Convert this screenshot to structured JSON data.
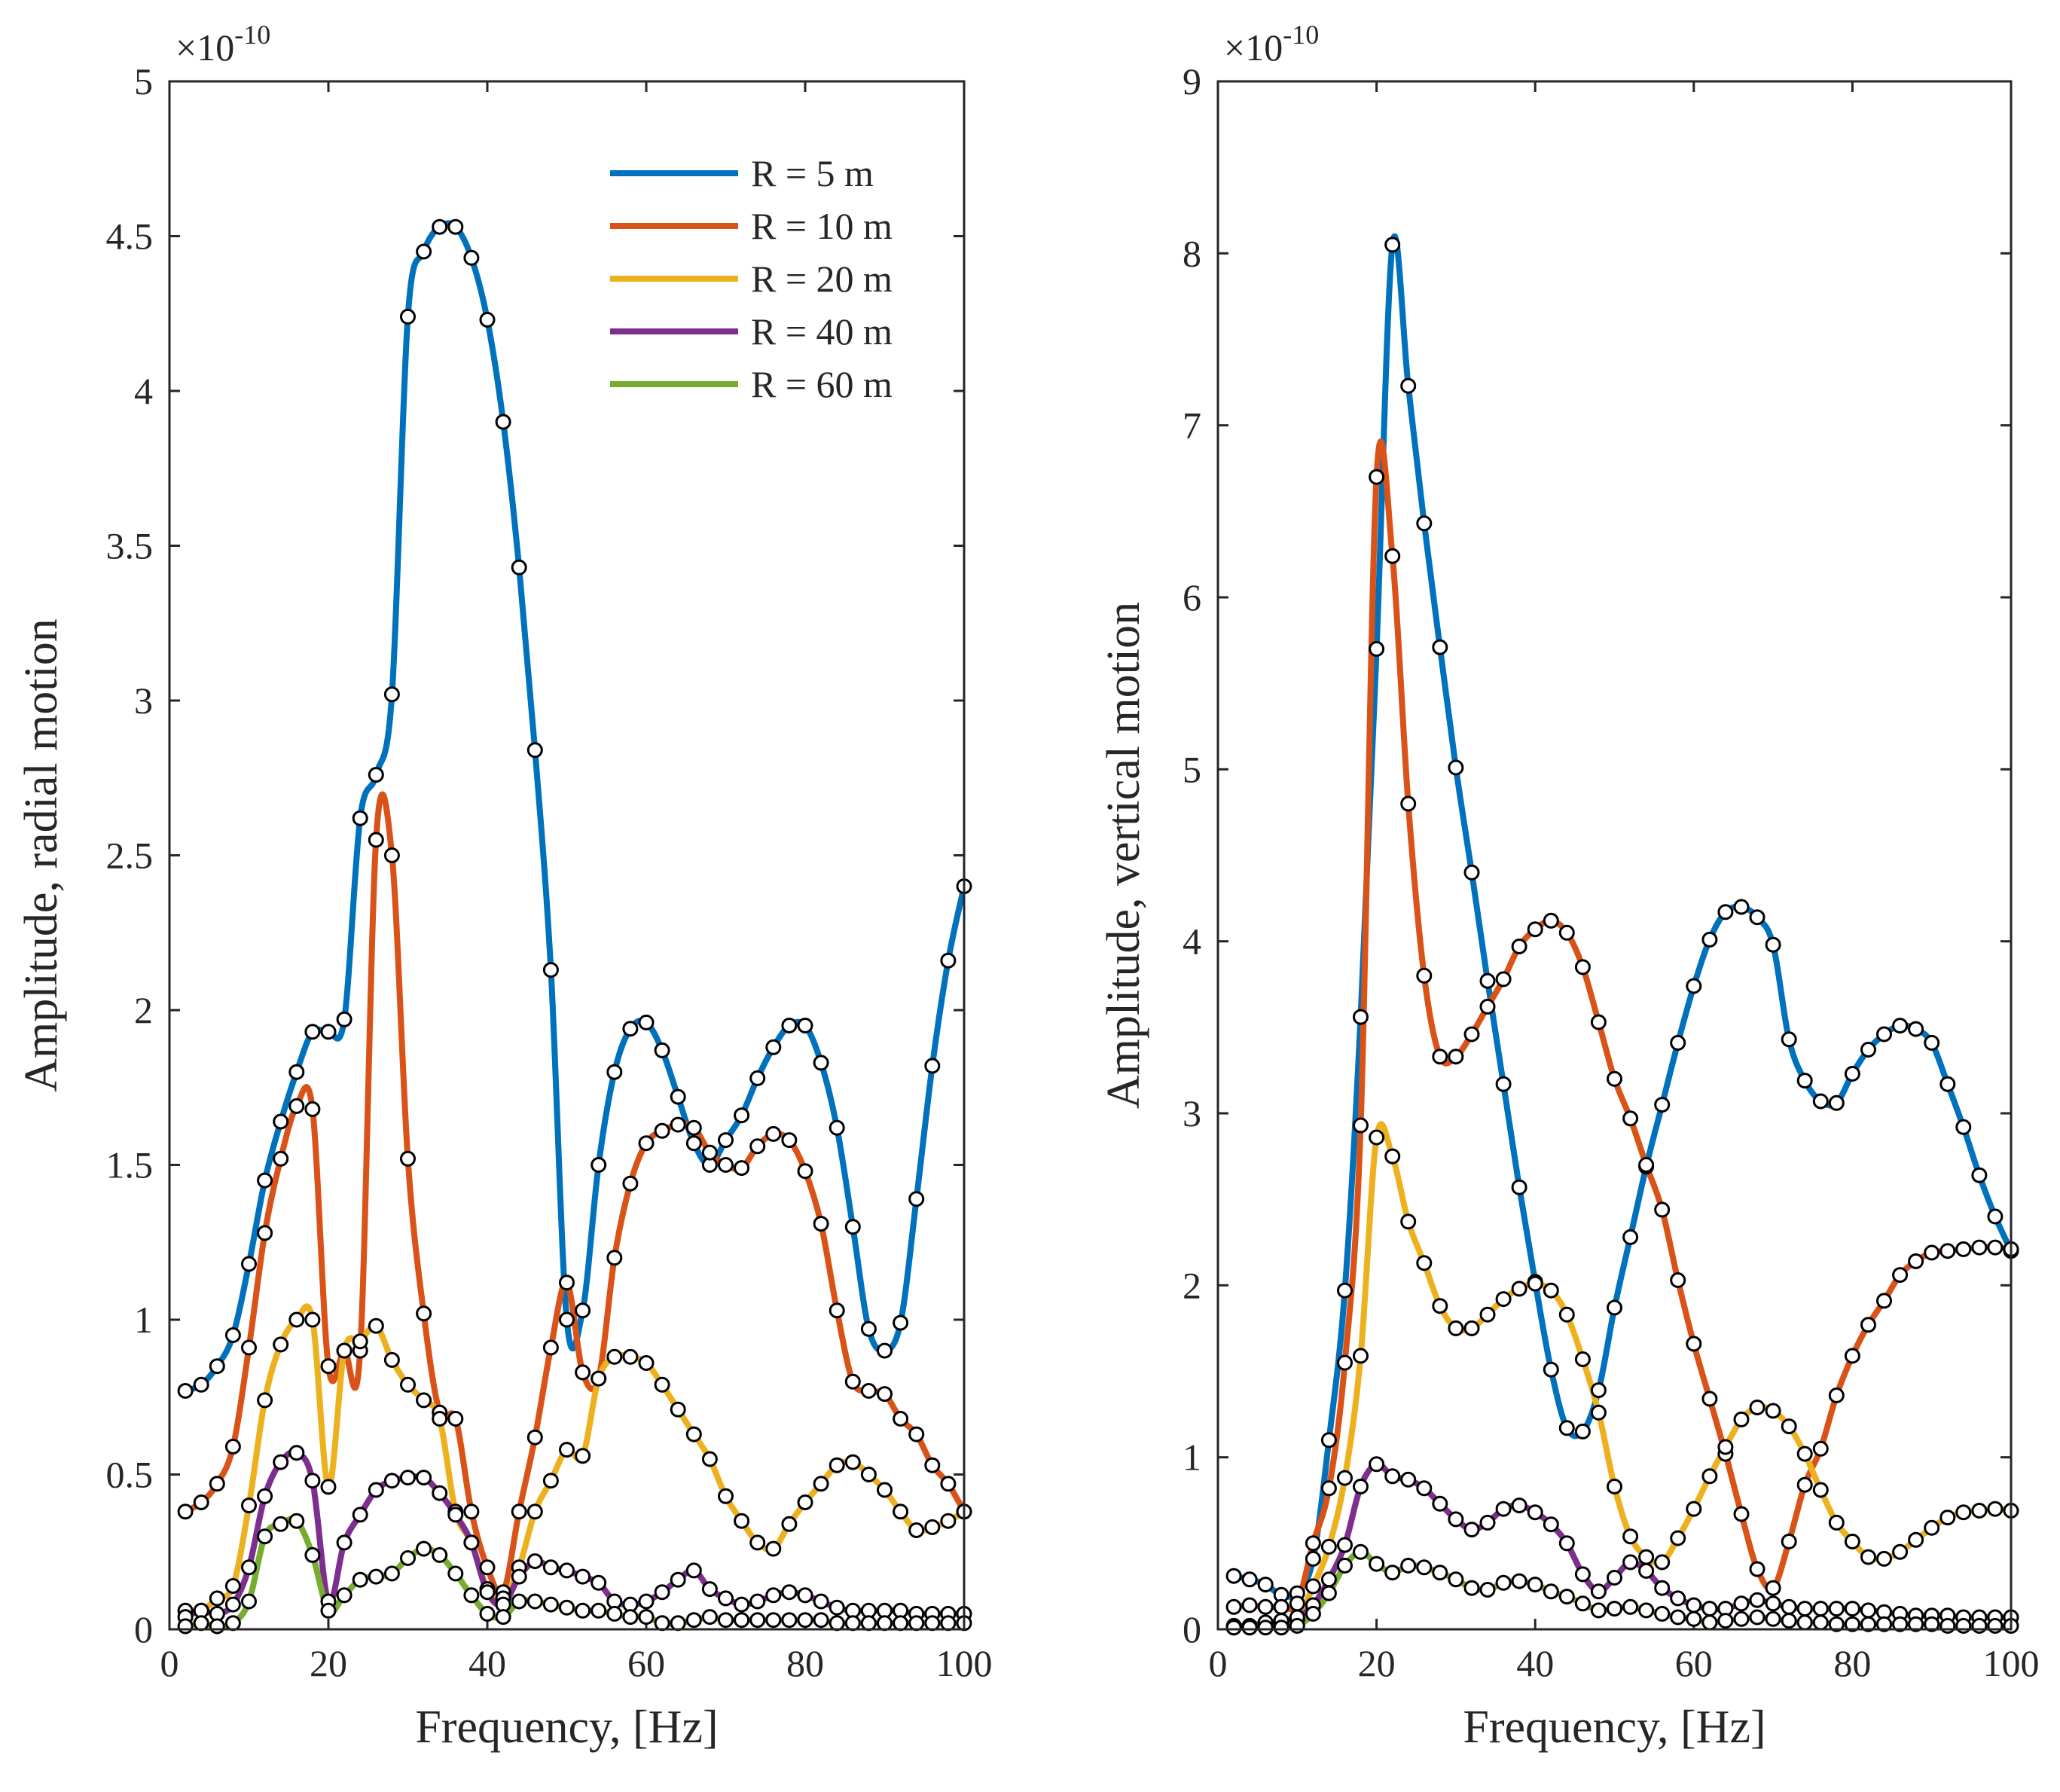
{
  "chart_data": [
    {
      "type": "line",
      "title": "",
      "xlabel": "Frequency, [Hz]",
      "ylabel": "Amplitude, radial motion",
      "exponent_label": "×10",
      "exponent_power": "-10",
      "xlim": [
        0,
        100
      ],
      "ylim": [
        0,
        5
      ],
      "xticks": [
        0,
        20,
        40,
        60,
        80,
        100
      ],
      "xtick_labels": [
        "0",
        "20",
        "40",
        "60",
        "80",
        "100"
      ],
      "yticks": [
        0,
        0.5,
        1,
        1.5,
        2,
        2.5,
        3,
        3.5,
        4,
        4.5,
        5
      ],
      "ytick_labels": [
        "0",
        "0.5",
        "1",
        "1.5",
        "2",
        "2.5",
        "3",
        "3.5",
        "4",
        "4.5",
        "5"
      ],
      "legend": {
        "position": "top-right",
        "entries": [
          "R = 5 m",
          "R = 10 m",
          "R = 20 m",
          "R = 40 m",
          "R = 60 m"
        ]
      },
      "x": [
        2,
        4,
        6,
        8,
        10,
        12,
        14,
        16,
        18,
        20,
        22,
        24,
        26,
        28,
        30,
        32,
        34,
        36,
        38,
        40,
        42,
        44,
        46,
        48,
        50,
        52,
        54,
        56,
        58,
        60,
        62,
        64,
        66,
        68,
        70,
        72,
        74,
        76,
        78,
        80,
        82,
        84,
        86,
        88,
        90,
        92,
        94,
        96,
        98,
        100
      ],
      "series": [
        {
          "name": "R = 5 m",
          "color": "#0072BD",
          "values": [
            0.77,
            0.79,
            0.85,
            0.95,
            1.18,
            1.45,
            1.64,
            1.8,
            1.93,
            1.93,
            1.97,
            2.62,
            2.76,
            3.02,
            4.24,
            4.45,
            4.53,
            4.53,
            4.43,
            4.23,
            3.9,
            3.43,
            2.84,
            2.13,
            1.0,
            1.03,
            1.5,
            1.8,
            1.94,
            1.96,
            1.87,
            1.72,
            1.57,
            1.5,
            1.58,
            1.66,
            1.78,
            1.88,
            1.95,
            1.95,
            1.83,
            1.62,
            1.3,
            0.97,
            0.9,
            0.99,
            1.39,
            1.82,
            2.16,
            2.4
          ]
        },
        {
          "name": "R = 10 m",
          "color": "#D95319",
          "values": [
            0.38,
            0.41,
            0.47,
            0.59,
            0.91,
            1.28,
            1.52,
            1.69,
            1.68,
            0.85,
            0.9,
            0.9,
            2.55,
            2.5,
            1.52,
            1.02,
            0.7,
            0.68,
            0.38,
            0.2,
            0.12,
            0.38,
            0.62,
            0.91,
            1.12,
            0.83,
            0.81,
            1.2,
            1.44,
            1.57,
            1.61,
            1.63,
            1.62,
            1.54,
            1.5,
            1.49,
            1.56,
            1.6,
            1.58,
            1.48,
            1.31,
            1.03,
            0.8,
            0.77,
            0.76,
            0.68,
            0.63,
            0.53,
            0.47,
            0.38
          ]
        },
        {
          "name": "R = 20 m",
          "color": "#EDB120",
          "values": [
            0.06,
            0.06,
            0.1,
            0.14,
            0.4,
            0.74,
            0.92,
            1.0,
            1.0,
            0.46,
            0.9,
            0.93,
            0.98,
            0.87,
            0.79,
            0.74,
            0.68,
            0.38,
            0.28,
            0.13,
            0.1,
            0.2,
            0.38,
            0.48,
            0.58,
            0.56,
            0.81,
            0.88,
            0.88,
            0.86,
            0.79,
            0.71,
            0.63,
            0.55,
            0.43,
            0.35,
            0.28,
            0.26,
            0.34,
            0.41,
            0.47,
            0.53,
            0.54,
            0.5,
            0.45,
            0.38,
            0.32,
            0.33,
            0.35,
            0.38
          ]
        },
        {
          "name": "R = 40 m",
          "color": "#7E2F8E",
          "values": [
            0.04,
            0.06,
            0.05,
            0.08,
            0.2,
            0.43,
            0.54,
            0.57,
            0.48,
            0.09,
            0.28,
            0.37,
            0.45,
            0.48,
            0.49,
            0.49,
            0.44,
            0.37,
            0.28,
            0.12,
            0.08,
            0.17,
            0.22,
            0.2,
            0.19,
            0.17,
            0.15,
            0.09,
            0.08,
            0.09,
            0.12,
            0.16,
            0.19,
            0.13,
            0.1,
            0.08,
            0.09,
            0.11,
            0.12,
            0.11,
            0.09,
            0.07,
            0.06,
            0.06,
            0.06,
            0.06,
            0.05,
            0.05,
            0.05,
            0.05
          ]
        },
        {
          "name": "R = 60 m",
          "color": "#77AC30",
          "values": [
            0.01,
            0.02,
            0.01,
            0.02,
            0.09,
            0.3,
            0.34,
            0.35,
            0.24,
            0.06,
            0.11,
            0.16,
            0.17,
            0.18,
            0.23,
            0.26,
            0.24,
            0.18,
            0.11,
            0.05,
            0.04,
            0.09,
            0.09,
            0.08,
            0.07,
            0.06,
            0.06,
            0.05,
            0.04,
            0.04,
            0.02,
            0.02,
            0.03,
            0.04,
            0.03,
            0.03,
            0.03,
            0.03,
            0.03,
            0.03,
            0.03,
            0.02,
            0.02,
            0.02,
            0.02,
            0.02,
            0.02,
            0.02,
            0.02,
            0.02
          ]
        }
      ]
    },
    {
      "type": "line",
      "title": "",
      "xlabel": "Frequency, [Hz]",
      "ylabel": "Amplitude, vertical motion",
      "exponent_label": "×10",
      "exponent_power": "-10",
      "xlim": [
        0,
        100
      ],
      "ylim": [
        0,
        9
      ],
      "xticks": [
        0,
        20,
        40,
        60,
        80,
        100
      ],
      "xtick_labels": [
        "0",
        "20",
        "40",
        "60",
        "80",
        "100"
      ],
      "yticks": [
        0,
        1,
        2,
        3,
        4,
        5,
        6,
        7,
        8,
        9
      ],
      "ytick_labels": [
        "0",
        "1",
        "2",
        "3",
        "4",
        "5",
        "6",
        "7",
        "8",
        "9"
      ],
      "legend": {
        "position": "none",
        "entries": []
      },
      "x": [
        2,
        4,
        6,
        8,
        10,
        12,
        14,
        16,
        18,
        20,
        22,
        24,
        26,
        28,
        30,
        32,
        34,
        36,
        38,
        40,
        42,
        44,
        46,
        48,
        50,
        52,
        54,
        56,
        58,
        60,
        62,
        64,
        66,
        68,
        70,
        72,
        74,
        76,
        78,
        80,
        82,
        84,
        86,
        88,
        90,
        92,
        94,
        96,
        98,
        100
      ],
      "series": [
        {
          "name": "R = 5 m",
          "color": "#0072BD",
          "values": [
            0.31,
            0.29,
            0.26,
            0.2,
            0.21,
            0.41,
            1.1,
            1.97,
            3.56,
            5.7,
            8.05,
            7.23,
            6.43,
            5.71,
            5.01,
            4.4,
            3.77,
            3.17,
            2.57,
            2.02,
            1.51,
            1.17,
            1.15,
            1.39,
            1.87,
            2.28,
            2.69,
            3.05,
            3.41,
            3.74,
            4.01,
            4.17,
            4.2,
            4.14,
            3.98,
            3.43,
            3.19,
            3.07,
            3.06,
            3.23,
            3.37,
            3.46,
            3.51,
            3.49,
            3.41,
            3.17,
            2.92,
            2.64,
            2.4,
            2.2
          ]
        },
        {
          "name": "R = 10 m",
          "color": "#D95319",
          "values": [
            0.13,
            0.14,
            0.13,
            0.13,
            0.15,
            0.5,
            0.82,
            1.55,
            2.93,
            6.7,
            6.24,
            4.8,
            3.8,
            3.33,
            3.33,
            3.46,
            3.62,
            3.78,
            3.97,
            4.07,
            4.12,
            4.05,
            3.85,
            3.53,
            3.2,
            2.97,
            2.7,
            2.44,
            2.03,
            1.66,
            1.34,
            1.02,
            0.67,
            0.35,
            0.24,
            0.51,
            0.84,
            1.05,
            1.36,
            1.59,
            1.77,
            1.91,
            2.06,
            2.14,
            2.19,
            2.2,
            2.21,
            2.22,
            2.22,
            2.21
          ]
        },
        {
          "name": "R = 20 m",
          "color": "#EDB120",
          "values": [
            0.01,
            0.01,
            0.02,
            0.03,
            0.06,
            0.25,
            0.48,
            0.88,
            1.59,
            2.86,
            2.75,
            2.37,
            2.13,
            1.88,
            1.75,
            1.75,
            1.83,
            1.92,
            1.98,
            2.01,
            1.97,
            1.83,
            1.57,
            1.26,
            0.83,
            0.54,
            0.42,
            0.39,
            0.53,
            0.7,
            0.89,
            1.06,
            1.22,
            1.29,
            1.27,
            1.18,
            1.02,
            0.81,
            0.62,
            0.51,
            0.42,
            0.41,
            0.45,
            0.52,
            0.59,
            0.65,
            0.68,
            0.69,
            0.7,
            0.69
          ]
        },
        {
          "name": "R = 40 m",
          "color": "#7E2F8E",
          "values": [
            0.02,
            0.02,
            0.04,
            0.05,
            0.07,
            0.14,
            0.29,
            0.49,
            0.83,
            0.96,
            0.89,
            0.87,
            0.82,
            0.73,
            0.64,
            0.58,
            0.62,
            0.7,
            0.72,
            0.68,
            0.61,
            0.5,
            0.32,
            0.22,
            0.3,
            0.39,
            0.34,
            0.24,
            0.18,
            0.14,
            0.12,
            0.12,
            0.15,
            0.17,
            0.15,
            0.13,
            0.12,
            0.12,
            0.12,
            0.12,
            0.11,
            0.1,
            0.09,
            0.08,
            0.08,
            0.08,
            0.07,
            0.07,
            0.07,
            0.07
          ]
        },
        {
          "name": "R = 60 m",
          "color": "#77AC30",
          "values": [
            0.01,
            0.01,
            0.01,
            0.01,
            0.02,
            0.09,
            0.21,
            0.37,
            0.45,
            0.38,
            0.33,
            0.37,
            0.36,
            0.33,
            0.29,
            0.24,
            0.23,
            0.27,
            0.28,
            0.26,
            0.22,
            0.19,
            0.15,
            0.11,
            0.12,
            0.13,
            0.11,
            0.09,
            0.07,
            0.06,
            0.04,
            0.05,
            0.06,
            0.07,
            0.06,
            0.05,
            0.04,
            0.04,
            0.03,
            0.03,
            0.03,
            0.03,
            0.03,
            0.03,
            0.03,
            0.02,
            0.02,
            0.02,
            0.02,
            0.02
          ]
        }
      ]
    }
  ]
}
